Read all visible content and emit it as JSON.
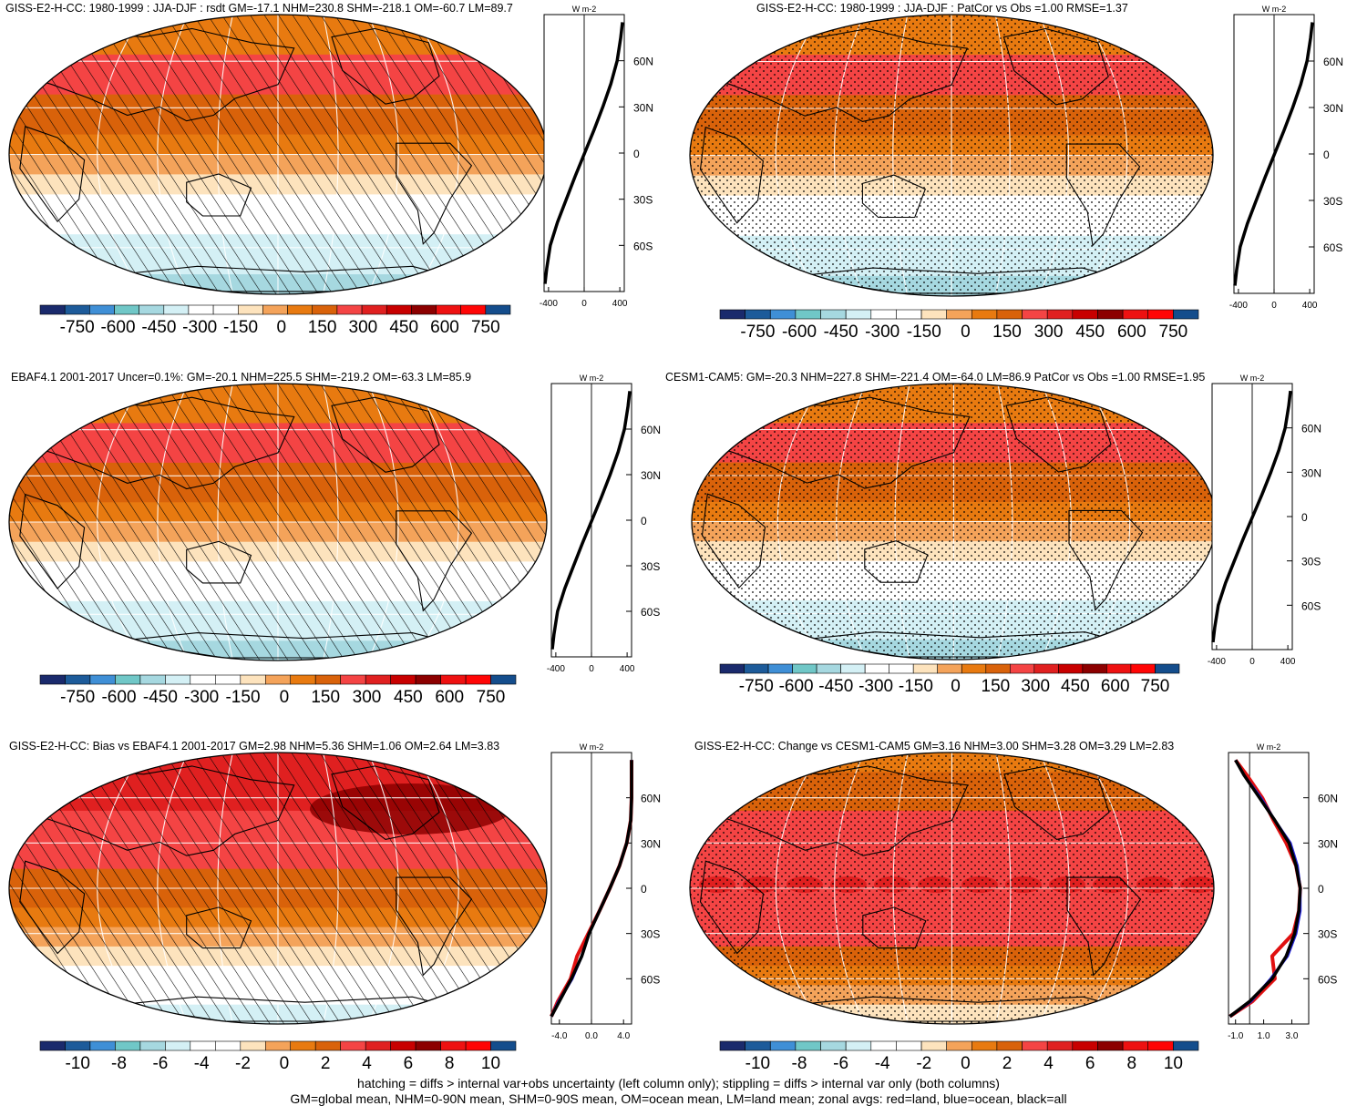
{
  "figure": {
    "footer_line1": "hatching = diffs > internal var+obs uncertainty (left column only); stippling = diffs > internal var only (both columns)",
    "footer_line2": "GM=global mean, NHM=0-90N mean, SHM=0-90S mean, OM=ocean mean, LM=land mean; zonal avgs: red=land, blue=ocean, black=all"
  },
  "colors": {
    "palette": [
      "#1a2a6c",
      "#1d5b9a",
      "#3f8fd6",
      "#70c7c7",
      "#a6d8e0",
      "#d4f0f5",
      "#ffffff",
      "#ffffff",
      "#fde3bd",
      "#f4a35a",
      "#e87a10",
      "#d9620a",
      "#f44444",
      "#e02020",
      "#c80000",
      "#8c0000",
      "#ee1111",
      "#ff0505",
      "#144d8c"
    ],
    "land": "#000000",
    "ocean": "#2222dd",
    "all": "#000000"
  },
  "chart_data": [
    {
      "type": "heatmap",
      "title": "GISS-E2-H-CC: 1980-1999 : JJA-DJF : rsdt GM=-17.1 NHM=230.8 SHM=-218.1 OM=-60.7 LM=89.7",
      "pattern": "hatch",
      "bands": [
        10,
        10,
        12,
        12,
        11,
        11,
        10,
        9,
        8,
        7,
        6,
        5,
        5,
        4
      ],
      "colorbar_labels": [
        "-750",
        "-600",
        "-450",
        "-300",
        "-150",
        "0",
        "150",
        "300",
        "450",
        "600",
        "750"
      ],
      "profile": {
        "units": "W m-2",
        "xlim": [
          -450,
          450
        ],
        "xticks": [
          "-400",
          "0",
          "400"
        ],
        "ylabels": [
          "60N",
          "30N",
          "0",
          "30S",
          "60S"
        ],
        "lat": [
          -85,
          -75,
          -60,
          -45,
          -30,
          -15,
          0,
          15,
          30,
          45,
          60,
          75,
          85
        ],
        "all": [
          -440,
          -420,
          -380,
          -300,
          -200,
          -100,
          5,
          110,
          210,
          300,
          370,
          410,
          430
        ]
      }
    },
    {
      "type": "heatmap",
      "title": "GISS-E2-H-CC: 1980-1999 : JJA-DJF : PatCor vs Obs =1.00 RMSE=1.37",
      "pattern": "stipple",
      "bands": [
        10,
        10,
        12,
        12,
        11,
        11,
        10,
        9,
        8,
        7,
        6,
        5,
        5,
        4
      ],
      "colorbar_labels": [
        "-750",
        "-600",
        "-450",
        "-300",
        "-150",
        "0",
        "150",
        "300",
        "450",
        "600",
        "750"
      ],
      "profile": {
        "units": "W m-2",
        "xlim": [
          -450,
          450
        ],
        "xticks": [
          "-400",
          "0",
          "400"
        ],
        "ylabels": [
          "60N",
          "30N",
          "0",
          "30S",
          "60S"
        ],
        "lat": [
          -85,
          -75,
          -60,
          -45,
          -30,
          -15,
          0,
          15,
          30,
          45,
          60,
          75,
          85
        ],
        "all": [
          -440,
          -420,
          -380,
          -300,
          -200,
          -100,
          5,
          110,
          210,
          300,
          370,
          410,
          430
        ]
      }
    },
    {
      "type": "heatmap",
      "title": "EBAF4.1 2001-2017 Uncer=0.1%: GM=-20.1 NHM=225.5 SHM=-219.2 OM=-63.3 LM=85.9",
      "pattern": "hatch",
      "bands": [
        10,
        10,
        12,
        12,
        11,
        11,
        10,
        9,
        8,
        7,
        6,
        5,
        5,
        4
      ],
      "colorbar_labels": [
        "-750",
        "-600",
        "-450",
        "-300",
        "-150",
        "0",
        "150",
        "300",
        "450",
        "600",
        "750"
      ],
      "profile": {
        "units": "W m-2",
        "xlim": [
          -450,
          450
        ],
        "xticks": [
          "-400",
          "0",
          "400"
        ],
        "ylabels": [
          "60N",
          "30N",
          "0",
          "30S",
          "60S"
        ],
        "lat": [
          -85,
          -75,
          -60,
          -45,
          -30,
          -15,
          0,
          15,
          30,
          45,
          60,
          75,
          85
        ],
        "all": [
          -440,
          -420,
          -380,
          -300,
          -200,
          -100,
          5,
          110,
          210,
          300,
          370,
          410,
          430
        ]
      }
    },
    {
      "type": "heatmap",
      "title": "CESM1-CAM5: GM=-20.3 NHM=227.8 SHM=-221.4 OM=-64.0 LM=86.9 PatCor vs Obs =1.00 RMSE=1.95",
      "pattern": "stipple",
      "bands": [
        10,
        10,
        12,
        12,
        11,
        11,
        10,
        9,
        8,
        7,
        6,
        5,
        5,
        4
      ],
      "colorbar_labels": [
        "-750",
        "-600",
        "-450",
        "-300",
        "-150",
        "0",
        "150",
        "300",
        "450",
        "600",
        "750"
      ],
      "profile": {
        "units": "W m-2",
        "xlim": [
          -450,
          450
        ],
        "xticks": [
          "-400",
          "0",
          "400"
        ],
        "ylabels": [
          "60N",
          "30N",
          "0",
          "30S",
          "60S"
        ],
        "lat": [
          -85,
          -75,
          -60,
          -45,
          -30,
          -15,
          0,
          15,
          30,
          45,
          60,
          75,
          85
        ],
        "all": [
          -440,
          -420,
          -380,
          -300,
          -200,
          -100,
          5,
          110,
          210,
          300,
          370,
          410,
          430
        ]
      }
    },
    {
      "type": "heatmap",
      "title": "GISS-E2-H-CC: Bias vs EBAF4.1 2001-2017 GM=2.98 NHM=5.36 SHM=1.06 OM=2.64 LM=3.83",
      "pattern": "hatch",
      "bands": [
        13,
        13,
        13,
        12,
        12,
        12,
        11,
        11,
        10,
        9,
        8,
        7,
        6,
        5
      ],
      "colorbar_labels": [
        "-10",
        "-8",
        "-6",
        "-4",
        "-2",
        "0",
        "2",
        "4",
        "6",
        "8",
        "10"
      ],
      "profile": {
        "units": "W m-2",
        "xlim": [
          -5,
          5
        ],
        "xticks": [
          "-4.0",
          "0.0",
          "4.0"
        ],
        "ylabels": [
          "60N",
          "30N",
          "0",
          "30S",
          "60S"
        ],
        "lat": [
          -85,
          -75,
          -60,
          -45,
          -30,
          -15,
          0,
          15,
          30,
          45,
          60,
          75,
          85
        ],
        "all": [
          -5.0,
          -4.0,
          -2.5,
          -1.2,
          -0.3,
          1.0,
          2.3,
          3.5,
          4.4,
          4.9,
          5.0,
          5.0,
          5.0
        ],
        "land": [
          -5.0,
          -4.2,
          -2.6,
          -1.8,
          -0.4,
          1.0,
          2.3,
          3.5,
          4.4,
          4.9,
          5.0,
          5.0,
          5.0
        ],
        "ocean": [
          -5.0,
          -4.1,
          -2.4,
          -1.2,
          -0.3,
          1.0,
          2.3,
          3.5,
          4.4,
          4.9,
          5.0,
          5.0,
          5.0
        ]
      }
    },
    {
      "type": "heatmap",
      "title": "GISS-E2-H-CC: Change vs CESM1-CAM5 GM=3.16 NHM=3.00 SHM=3.28 OM=3.29 LM=2.83",
      "pattern": "stipple",
      "bands": [
        10,
        11,
        11,
        12,
        12,
        12,
        12,
        12,
        12,
        12,
        11,
        10,
        9,
        8
      ],
      "colorbar_labels": [
        "-10",
        "-8",
        "-6",
        "-4",
        "-2",
        "0",
        "2",
        "4",
        "6",
        "8",
        "10"
      ],
      "profile": {
        "units": "W m-2",
        "xlim": [
          -1.5,
          4.2
        ],
        "xticks": [
          "-1.0",
          "1.0",
          "3.0"
        ],
        "ylabels": [
          "60N",
          "30N",
          "0",
          "30S",
          "60S"
        ],
        "lat": [
          -85,
          -75,
          -60,
          -45,
          -30,
          -15,
          0,
          15,
          30,
          45,
          60,
          75,
          85
        ],
        "all": [
          -1.4,
          0.0,
          1.6,
          2.6,
          3.2,
          3.5,
          3.6,
          3.3,
          2.8,
          1.8,
          0.7,
          -0.4,
          -1.0
        ],
        "land": [
          -1.4,
          0.2,
          1.8,
          1.6,
          3.1,
          3.5,
          3.6,
          3.3,
          2.6,
          1.7,
          0.9,
          -0.2,
          -1.0
        ],
        "ocean": [
          -1.4,
          0.1,
          1.5,
          2.7,
          3.3,
          3.6,
          3.6,
          3.4,
          2.9,
          1.8,
          0.8,
          -0.4,
          -1.0
        ]
      }
    }
  ]
}
